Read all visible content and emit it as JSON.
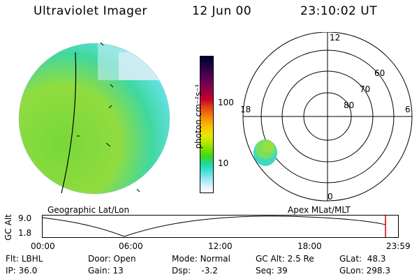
{
  "header": {
    "instrument": "Ultraviolet Imager",
    "date": "12 Jun 00",
    "time": "23:10:02 UT"
  },
  "colorbar": {
    "unit_label": "photon cm⁻²s⁻¹",
    "ticks": [
      "100",
      "10"
    ],
    "colors": [
      "#000033",
      "#1a0040",
      "#3a004a",
      "#5a0050",
      "#7d0052",
      "#a00040",
      "#c8002a",
      "#e0401a",
      "#f07010",
      "#f8a000",
      "#f8c800",
      "#e8e800",
      "#b8e800",
      "#78e000",
      "#38d820",
      "#20d8a0",
      "#40e0d8",
      "#90e8f0",
      "#d8f0f8",
      "#ffffff"
    ]
  },
  "polar_plot": {
    "mlt_labels": {
      "top": "12",
      "left": "18",
      "right": "6",
      "bottom": "0"
    },
    "lat_labels": [
      "60",
      "70",
      "80"
    ]
  },
  "captions": {
    "left": "Geographic Lat/Lon",
    "right": "Apex MLat/MLT"
  },
  "altitude_plot": {
    "axis_title": "GC Alt",
    "y_ticks": [
      "9.0",
      "1.8"
    ],
    "x_ticks": [
      "00:00",
      "06:00",
      "12:00",
      "18:00",
      "23:59"
    ],
    "current_time_color": "#cc0000"
  },
  "status": {
    "flt": {
      "label": "Flt:",
      "value": "LBHL"
    },
    "ip": {
      "label": "IP:",
      "value": "36.0"
    },
    "door": {
      "label": "Door:",
      "value": "Open"
    },
    "gain": {
      "label": "Gain:",
      "value": "13"
    },
    "mode": {
      "label": "Mode:",
      "value": "Normal"
    },
    "dsp": {
      "label": "Dsp:",
      "value": "-3.2"
    },
    "gcalt": {
      "label": "GC Alt:",
      "value": "2.5 Re"
    },
    "seq": {
      "label": "Seq:",
      "value": "39"
    },
    "glat": {
      "label": "GLat:",
      "value": "48.3"
    },
    "glon": {
      "label": "GLon:",
      "value": "298.3"
    }
  }
}
